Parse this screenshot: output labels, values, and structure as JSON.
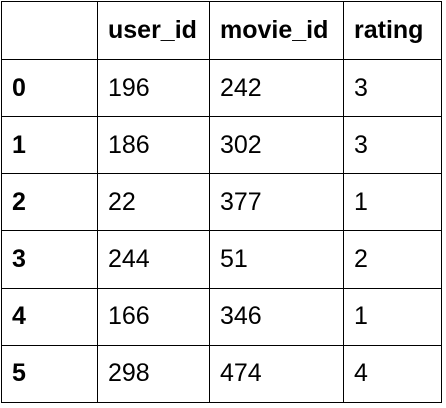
{
  "table": {
    "columns": [
      "",
      "user_id",
      "movie_id",
      "rating"
    ],
    "rows": [
      {
        "index": "0",
        "user_id": "196",
        "movie_id": "242",
        "rating": "3"
      },
      {
        "index": "1",
        "user_id": "186",
        "movie_id": "302",
        "rating": "3"
      },
      {
        "index": "2",
        "user_id": "22",
        "movie_id": "377",
        "rating": "1"
      },
      {
        "index": "3",
        "user_id": "244",
        "movie_id": "51",
        "rating": "2"
      },
      {
        "index": "4",
        "user_id": "166",
        "movie_id": "346",
        "rating": "1"
      },
      {
        "index": "5",
        "user_id": "298",
        "movie_id": "474",
        "rating": "4"
      }
    ]
  }
}
